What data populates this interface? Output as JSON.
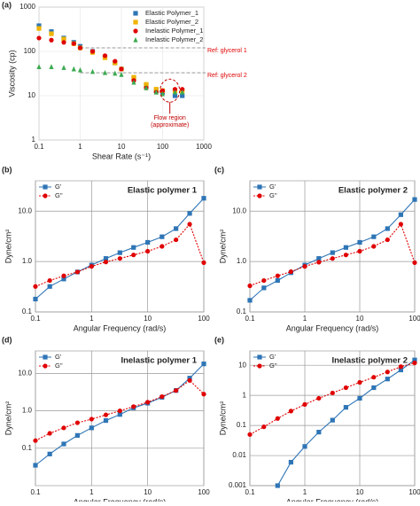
{
  "chart_data": [
    {
      "type": "scatter",
      "panel_label": "(a)",
      "xlabel": "Shear Rate (s⁻¹)",
      "ylabel": "Viscosity (cp)",
      "xscale": "log",
      "yscale": "log",
      "xlim": [
        0.1,
        1000
      ],
      "ylim": [
        1,
        1000
      ],
      "xticks": [
        0.1,
        1,
        10,
        100,
        1000
      ],
      "yticks": [
        1,
        10,
        100,
        1000
      ],
      "grid": true,
      "legend": "upper right",
      "x": [
        0.1,
        0.2,
        0.4,
        0.7,
        1,
        2,
        4,
        7,
        10,
        20,
        40,
        70,
        100,
        200,
        300
      ],
      "series": [
        {
          "name": "Elastic Polymer_1",
          "color": "#2e75b6",
          "marker": "square",
          "values": [
            380,
            280,
            200,
            160,
            130,
            100,
            75,
            55,
            40,
            25,
            17,
            13,
            12,
            10,
            10
          ]
        },
        {
          "name": "Elastic Polymer_2",
          "color": "#f0b400",
          "marker": "square",
          "values": [
            330,
            250,
            190,
            150,
            120,
            95,
            72,
            55,
            40,
            26,
            18,
            14,
            13,
            13,
            13
          ]
        },
        {
          "name": "Inelastic Polymer_1",
          "color": "#e00000",
          "marker": "circle",
          "values": [
            200,
            180,
            160,
            150,
            120,
            100,
            80,
            60,
            40,
            22,
            15,
            12,
            13,
            14,
            14
          ]
        },
        {
          "name": "Inelastic Polymer_2",
          "color": "#3caa50",
          "marker": "triangle",
          "values": [
            45,
            45,
            43,
            40,
            38,
            35,
            33,
            32,
            30,
            20,
            15,
            12,
            11,
            12,
            12
          ]
        }
      ],
      "reference_lines": [
        {
          "label": "Ref: glycerol 1",
          "value": 120,
          "x_start": 1,
          "color": "#999999"
        },
        {
          "label": "Ref: glycerol 2",
          "value": 33,
          "x_start": 1,
          "color": "#999999"
        }
      ],
      "annotation": {
        "lines": [
          "Flow region",
          "(approximate)"
        ],
        "x": 150,
        "y": 13,
        "color": "#c00000"
      }
    },
    {
      "type": "line",
      "panel_label": "(b)",
      "title": "Elastic polymer 1",
      "xlabel": "Angular Frequency (rad/s)",
      "ylabel": "Dyne/cm²",
      "xscale": "log",
      "yscale": "log",
      "xlim": [
        0.1,
        100
      ],
      "ylim": [
        0.1,
        40
      ],
      "xticks": [
        0.1,
        1,
        10,
        100
      ],
      "yticks": [
        {
          "value": 0.1,
          "label": "0.1"
        },
        {
          "value": 1,
          "label": "1.0"
        },
        {
          "value": 10,
          "label": "10.0"
        }
      ],
      "grid": true,
      "legend": "upper left",
      "x": [
        0.1,
        0.18,
        0.32,
        0.56,
        1,
        1.8,
        3.2,
        5.6,
        10,
        18,
        32,
        56,
        100
      ],
      "series": [
        {
          "name": "G'",
          "color": "#2e75b6",
          "marker": "square",
          "linestyle": "solid",
          "values": [
            0.18,
            0.32,
            0.45,
            0.62,
            0.85,
            1.15,
            1.5,
            1.9,
            2.4,
            3.1,
            4.5,
            9,
            18
          ]
        },
        {
          "name": "G''",
          "color": "#e00000",
          "marker": "circle",
          "linestyle": "dotted",
          "values": [
            0.32,
            0.42,
            0.52,
            0.62,
            0.8,
            0.98,
            1.15,
            1.35,
            1.6,
            2.0,
            2.7,
            5.5,
            0.95
          ]
        }
      ]
    },
    {
      "type": "line",
      "panel_label": "(c)",
      "title": "Elastic polymer 2",
      "xlabel": "Angular Frequency (rad/s)",
      "ylabel": "Dyne/cm²",
      "xscale": "log",
      "yscale": "log",
      "xlim": [
        0.1,
        100
      ],
      "ylim": [
        0.1,
        40
      ],
      "xticks": [
        0.1,
        1,
        10,
        100
      ],
      "yticks": [
        {
          "value": 0.1,
          "label": "0.1"
        },
        {
          "value": 1,
          "label": "1.0"
        },
        {
          "value": 10,
          "label": "10.0"
        }
      ],
      "grid": true,
      "legend": "upper left",
      "x": [
        0.1,
        0.18,
        0.32,
        0.56,
        1,
        1.8,
        3.2,
        5.6,
        10,
        18,
        32,
        56,
        100
      ],
      "series": [
        {
          "name": "G'",
          "color": "#2e75b6",
          "marker": "square",
          "linestyle": "solid",
          "values": [
            0.17,
            0.3,
            0.42,
            0.6,
            0.85,
            1.15,
            1.5,
            1.9,
            2.4,
            3.1,
            4.5,
            8.5,
            17
          ]
        },
        {
          "name": "G''",
          "color": "#e00000",
          "marker": "circle",
          "linestyle": "dotted",
          "values": [
            0.33,
            0.42,
            0.52,
            0.63,
            0.8,
            0.97,
            1.15,
            1.35,
            1.6,
            2.0,
            2.7,
            5.5,
            0.95
          ]
        }
      ]
    },
    {
      "type": "line",
      "panel_label": "(d)",
      "title": "Inelastic polymer 1",
      "xlabel": "Angular Frequency (rad/s)",
      "ylabel": "Dyne/cm²",
      "xscale": "log",
      "yscale": "log",
      "xlim": [
        0.1,
        100
      ],
      "ylim": [
        0.01,
        40
      ],
      "xticks": [
        0.1,
        1,
        10,
        100
      ],
      "yticks": [
        {
          "value": 0.1,
          "label": "0.1"
        },
        {
          "value": 1,
          "label": "1.0"
        },
        {
          "value": 10,
          "label": "10.0"
        }
      ],
      "grid": true,
      "legend": "upper left",
      "x": [
        0.1,
        0.18,
        0.32,
        0.56,
        1,
        1.8,
        3.2,
        5.6,
        10,
        18,
        32,
        56,
        100
      ],
      "series": [
        {
          "name": "G'",
          "color": "#2e75b6",
          "marker": "square",
          "linestyle": "solid",
          "values": [
            0.035,
            0.07,
            0.13,
            0.22,
            0.35,
            0.55,
            0.8,
            1.2,
            1.6,
            2.3,
            3.5,
            7.5,
            18
          ]
        },
        {
          "name": "G''",
          "color": "#e00000",
          "marker": "circle",
          "linestyle": "dotted",
          "values": [
            0.16,
            0.25,
            0.35,
            0.48,
            0.6,
            0.78,
            1.0,
            1.3,
            1.7,
            2.4,
            3.5,
            6.5,
            2.8
          ]
        }
      ]
    },
    {
      "type": "line",
      "panel_label": "(e)",
      "title": "Inelastic polymer 2",
      "xlabel": "Angular Frequency (rad/s)",
      "ylabel": "Dyne/cm²",
      "xscale": "log",
      "yscale": "log",
      "xlim": [
        0.1,
        100
      ],
      "ylim": [
        0.001,
        30
      ],
      "xticks": [
        0.1,
        1,
        10,
        100
      ],
      "yticks": [
        0.001,
        0.01,
        0.1,
        1,
        10
      ],
      "grid": true,
      "legend": "upper left",
      "x": [
        0.1,
        0.18,
        0.32,
        0.56,
        1,
        1.8,
        3.2,
        5.6,
        10,
        18,
        32,
        56,
        100
      ],
      "series": [
        {
          "name": "G'",
          "color": "#2e75b6",
          "marker": "square",
          "linestyle": "solid",
          "values": [
            null,
            null,
            0.001,
            0.006,
            0.02,
            0.06,
            0.15,
            0.4,
            0.8,
            1.8,
            3.5,
            7,
            15
          ]
        },
        {
          "name": "G''",
          "color": "#e00000",
          "marker": "circle",
          "linestyle": "dotted",
          "values": [
            0.05,
            0.09,
            0.17,
            0.3,
            0.5,
            0.8,
            1.2,
            1.8,
            2.7,
            4,
            6,
            9,
            12
          ]
        }
      ]
    }
  ]
}
